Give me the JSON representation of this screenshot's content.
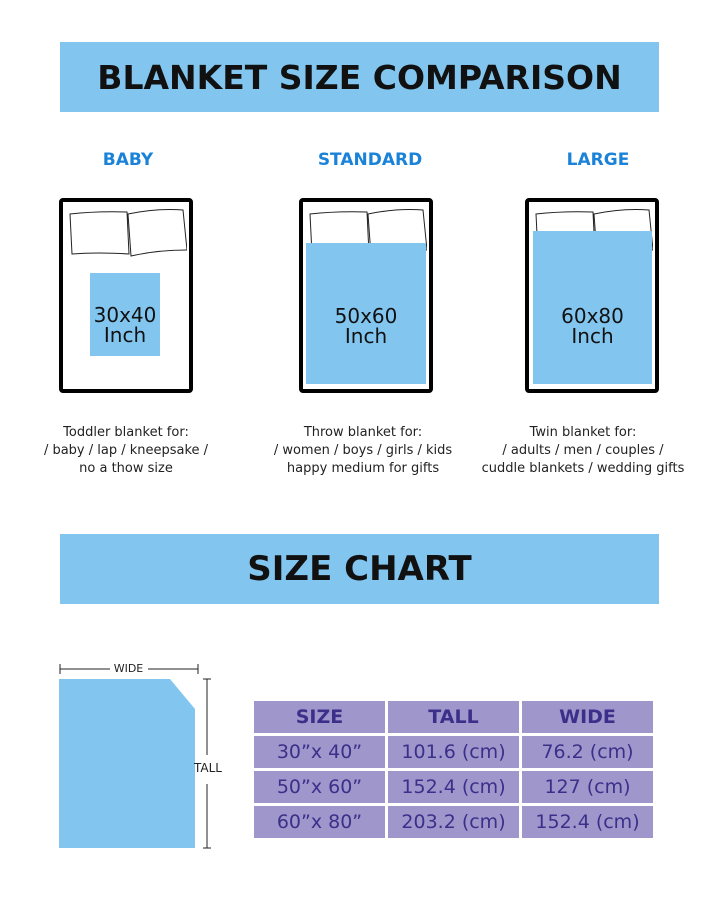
{
  "colors": {
    "banner": "#82c6f0",
    "accent": "#1a82d8",
    "table_cell": "#9f97cb",
    "table_text": "#3b2f8a",
    "blanket": "#82c6f0"
  },
  "comparison": {
    "title": "BLANKET SIZE COMPARISON",
    "items": [
      {
        "name": "BABY",
        "size": "30x40",
        "unit": "Inch",
        "desc": [
          "Toddler blanket for:",
          "/ baby / lap / kneepsake /",
          "no a thow size"
        ]
      },
      {
        "name": "STANDARD",
        "size": "50x60",
        "unit": "Inch",
        "desc": [
          "Throw blanket for:",
          "/ women / boys / girls / kids",
          "happy medium for gifts"
        ]
      },
      {
        "name": "LARGE",
        "size": "60x80",
        "unit": "Inch",
        "desc": [
          "Twin blanket for:",
          "/ adults / men / couples /",
          "cuddle blankets / wedding gifts"
        ]
      }
    ]
  },
  "size_chart": {
    "title": "SIZE CHART",
    "diagram": {
      "wide_label": "WIDE",
      "tall_label": "TALL"
    },
    "headers": [
      "SIZE",
      "TALL",
      "WIDE"
    ],
    "rows": [
      [
        "30”x 40”",
        "101.6 (cm)",
        "76.2 (cm)"
      ],
      [
        "50”x 60”",
        "152.4 (cm)",
        "127 (cm)"
      ],
      [
        "60”x 80”",
        "203.2 (cm)",
        "152.4 (cm)"
      ]
    ]
  }
}
